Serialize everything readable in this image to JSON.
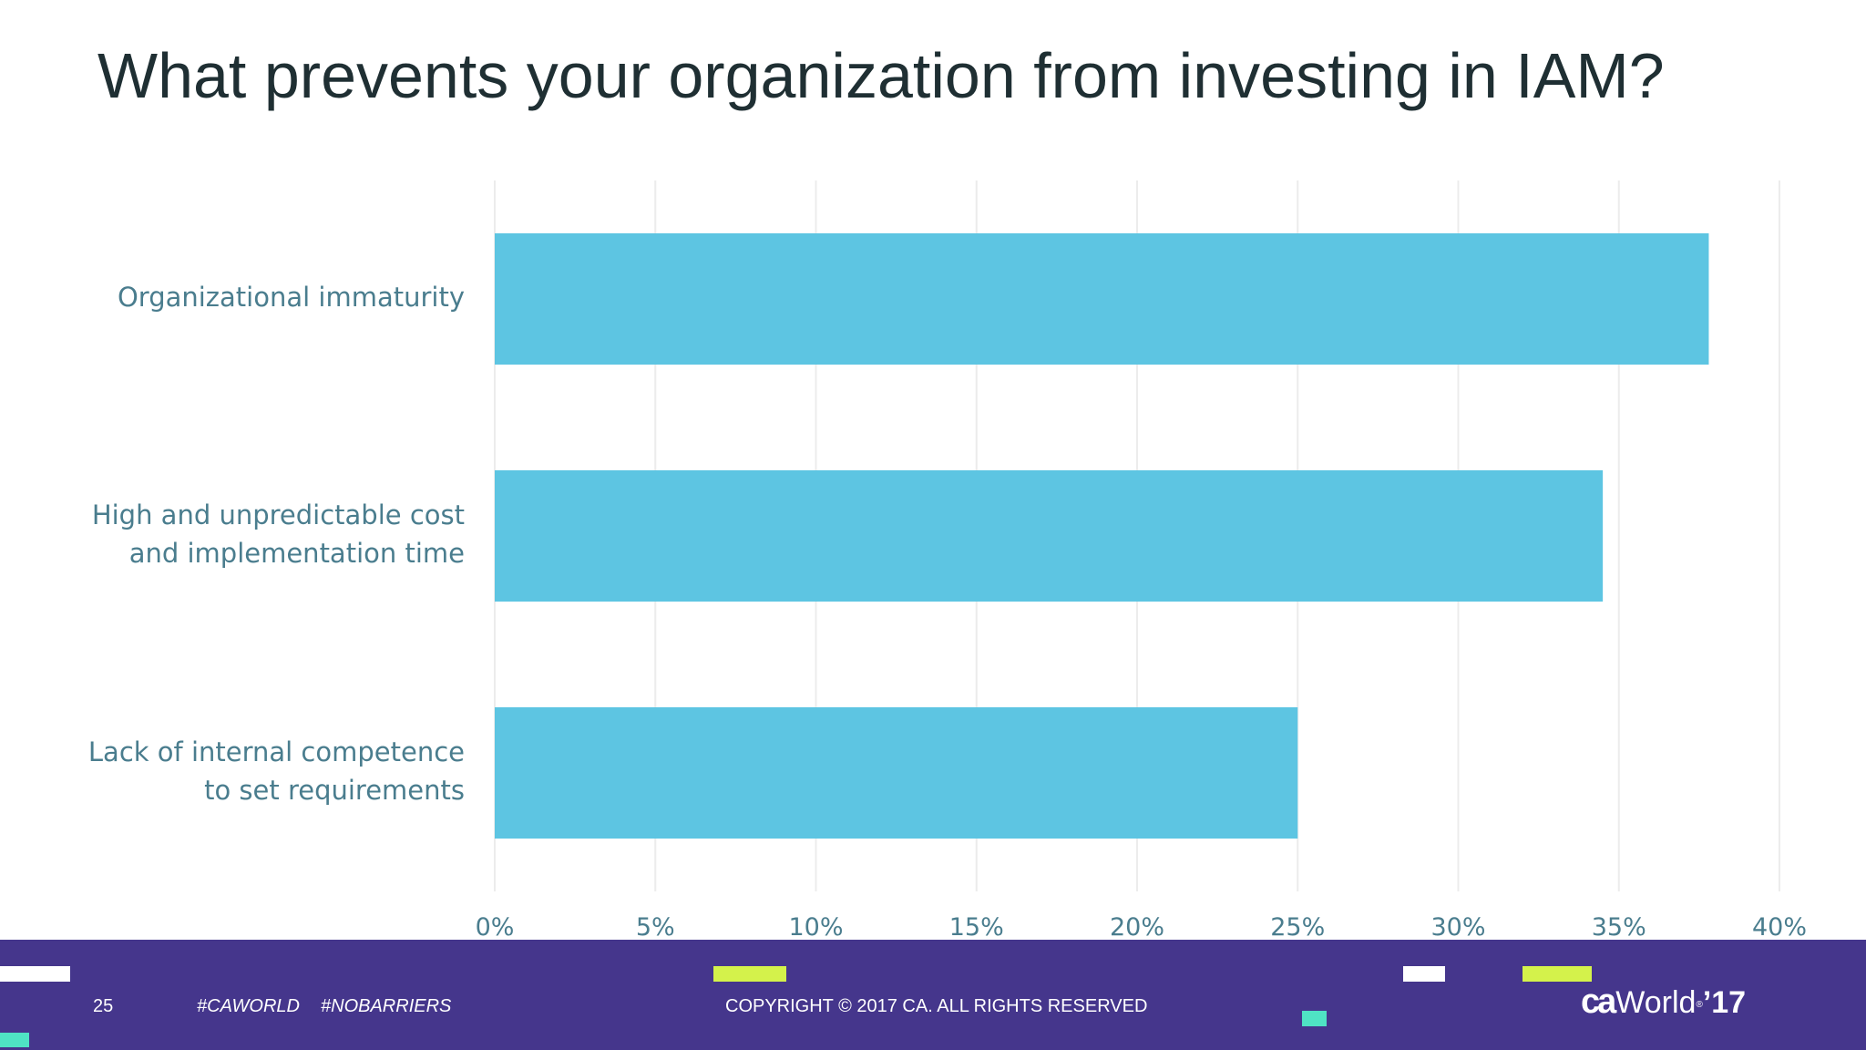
{
  "slide": {
    "title": "What prevents your organization from investing in IAM?"
  },
  "chart_data": {
    "type": "bar",
    "orientation": "horizontal",
    "categories": [
      [
        "Organizational immaturity"
      ],
      [
        "High and unpredictable cost",
        "and implementation time"
      ],
      [
        "Lack of internal competence",
        "to set requirements"
      ]
    ],
    "values": [
      37.8,
      34.5,
      25.0
    ],
    "xlim": [
      0,
      40
    ],
    "xticks": [
      "0%",
      "5%",
      "10%",
      "15%",
      "20%",
      "25%",
      "30%",
      "35%",
      "40%"
    ],
    "grid": true,
    "legend": "none",
    "bar_color": "#5dc5e2",
    "grid_color": "#ececec"
  },
  "footer": {
    "page_number": "25",
    "hashtag_1": "#CAWORLD",
    "hashtag_2": "#NOBARRIERS",
    "copyright": "COPYRIGHT © 2017 CA. ALL RIGHTS RESERVED",
    "logo": {
      "ca": "ca",
      "world": "World",
      "registered": "®",
      "year": "’17"
    },
    "background_color": "#45368c",
    "accent_colors": {
      "white": "#ffffff",
      "lime": "#d4f24b",
      "teal": "#4fe3c4"
    }
  }
}
